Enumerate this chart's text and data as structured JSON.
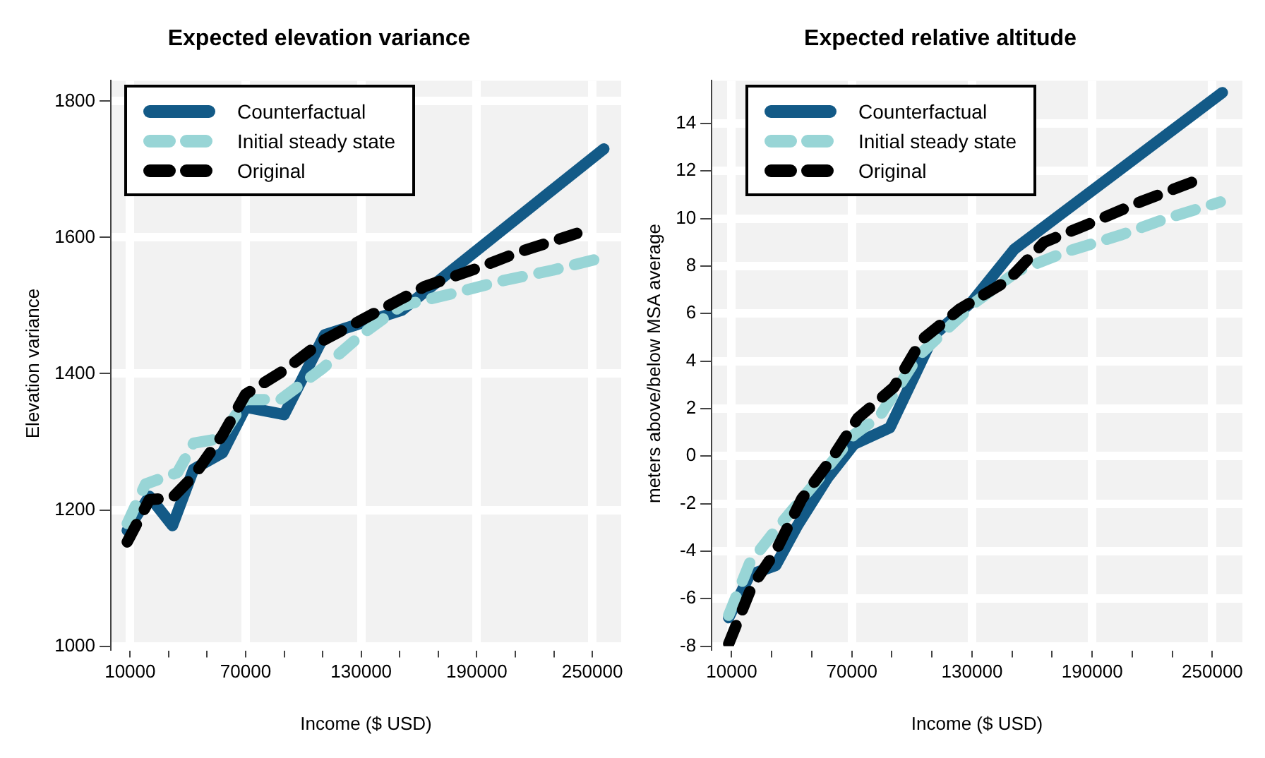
{
  "chart_data": [
    {
      "type": "line",
      "title": "Expected elevation variance",
      "xlabel": "Income ($ USD)",
      "ylabel": "Elevation variance",
      "xlim": [
        0,
        265000
      ],
      "xticks": [
        10000,
        {
          "value": 30000,
          "label": null
        },
        {
          "value": 50000,
          "label": null
        },
        70000,
        {
          "value": 90000,
          "label": null
        },
        {
          "value": 110000,
          "label": null
        },
        130000,
        {
          "value": 150000,
          "label": null
        },
        {
          "value": 170000,
          "label": null
        },
        190000,
        {
          "value": 210000,
          "label": null
        },
        {
          "value": 230000,
          "label": null
        },
        250000
      ],
      "ylim": [
        1000,
        1830
      ],
      "yticks": [
        1000,
        1200,
        1400,
        1600,
        1800
      ],
      "grid": true,
      "legend": "top left",
      "series": [
        {
          "name": "Counterfactual",
          "color": "#135a87",
          "line_style": "solid",
          "x": [
            8500,
            20000,
            32000,
            43000,
            58000,
            70000,
            90000,
            111000,
            151000,
            256000
          ],
          "values": [
            1170,
            1220,
            1177,
            1260,
            1284,
            1351,
            1340,
            1457,
            1493,
            1730
          ]
        },
        {
          "name": "Initial steady state",
          "color": "#98d5d6",
          "line_style": "dashed",
          "x": [
            8500,
            18000,
            34600,
            43000,
            57000,
            70000,
            88000,
            110000,
            130000,
            151000,
            178000,
            201000,
            229500,
            255000
          ],
          "values": [
            1180,
            1238,
            1255,
            1298,
            1305,
            1362,
            1362,
            1408,
            1457,
            1500,
            1518,
            1535,
            1552,
            1570
          ]
        },
        {
          "name": "Original",
          "color": "#000000",
          "line_style": "dashed",
          "x": [
            8500,
            20000,
            32000,
            43000,
            58000,
            70000,
            90000,
            111000,
            151000,
            163000,
            188500,
            211500,
            242000
          ],
          "values": [
            1153,
            1215,
            1218,
            1250,
            1310,
            1370,
            1405,
            1450,
            1510,
            1528,
            1553,
            1578,
            1606
          ]
        }
      ]
    },
    {
      "type": "line",
      "title": "Expected relative altitude",
      "xlabel": "Income ($ USD)",
      "ylabel": "meters above/below MSA average",
      "xlim": [
        0,
        265000
      ],
      "xticks": [
        10000,
        {
          "value": 30000,
          "label": null
        },
        {
          "value": 50000,
          "label": null
        },
        70000,
        {
          "value": 90000,
          "label": null
        },
        {
          "value": 110000,
          "label": null
        },
        130000,
        {
          "value": 150000,
          "label": null
        },
        {
          "value": 170000,
          "label": null
        },
        190000,
        {
          "value": 210000,
          "label": null
        },
        {
          "value": 230000,
          "label": null
        },
        250000
      ],
      "ylim": [
        -8,
        15.8
      ],
      "yticks": [
        -8,
        -6,
        -4,
        -2,
        0,
        2,
        4,
        6,
        8,
        10,
        12,
        14
      ],
      "grid": true,
      "legend": "top left",
      "series": [
        {
          "name": "Counterfactual",
          "color": "#135a87",
          "line_style": "solid",
          "x": [
            8500,
            19000,
            32000,
            43000,
            58000,
            71000,
            89000,
            111000,
            130000,
            151000,
            255000
          ],
          "values": [
            -6.8,
            -5.0,
            -4.6,
            -2.9,
            -0.9,
            0.5,
            1.2,
            5.1,
            6.5,
            8.7,
            15.3
          ]
        },
        {
          "name": "Initial steady state",
          "color": "#98d5d6",
          "line_style": "dashed",
          "x": [
            8500,
            19000,
            32000,
            50000,
            71000,
            84000,
            103000,
            132000,
            153000,
            177000,
            204000,
            227000,
            254000
          ],
          "values": [
            -6.7,
            -4.5,
            -3.1,
            -1.3,
            0.9,
            1.7,
            4.2,
            6.5,
            7.8,
            8.6,
            9.3,
            10.0,
            10.7
          ]
        },
        {
          "name": "Original",
          "color": "#000000",
          "line_style": "dashed",
          "x": [
            8500,
            20000,
            32000,
            45000,
            60000,
            73000,
            91000,
            105000,
            124000,
            148000,
            166000,
            189000,
            214000,
            242000
          ],
          "values": [
            -7.9,
            -5.5,
            -4.0,
            -1.8,
            -0.1,
            1.6,
            2.9,
            4.9,
            6.2,
            7.4,
            9.0,
            9.8,
            10.7,
            11.6
          ]
        }
      ]
    }
  ]
}
